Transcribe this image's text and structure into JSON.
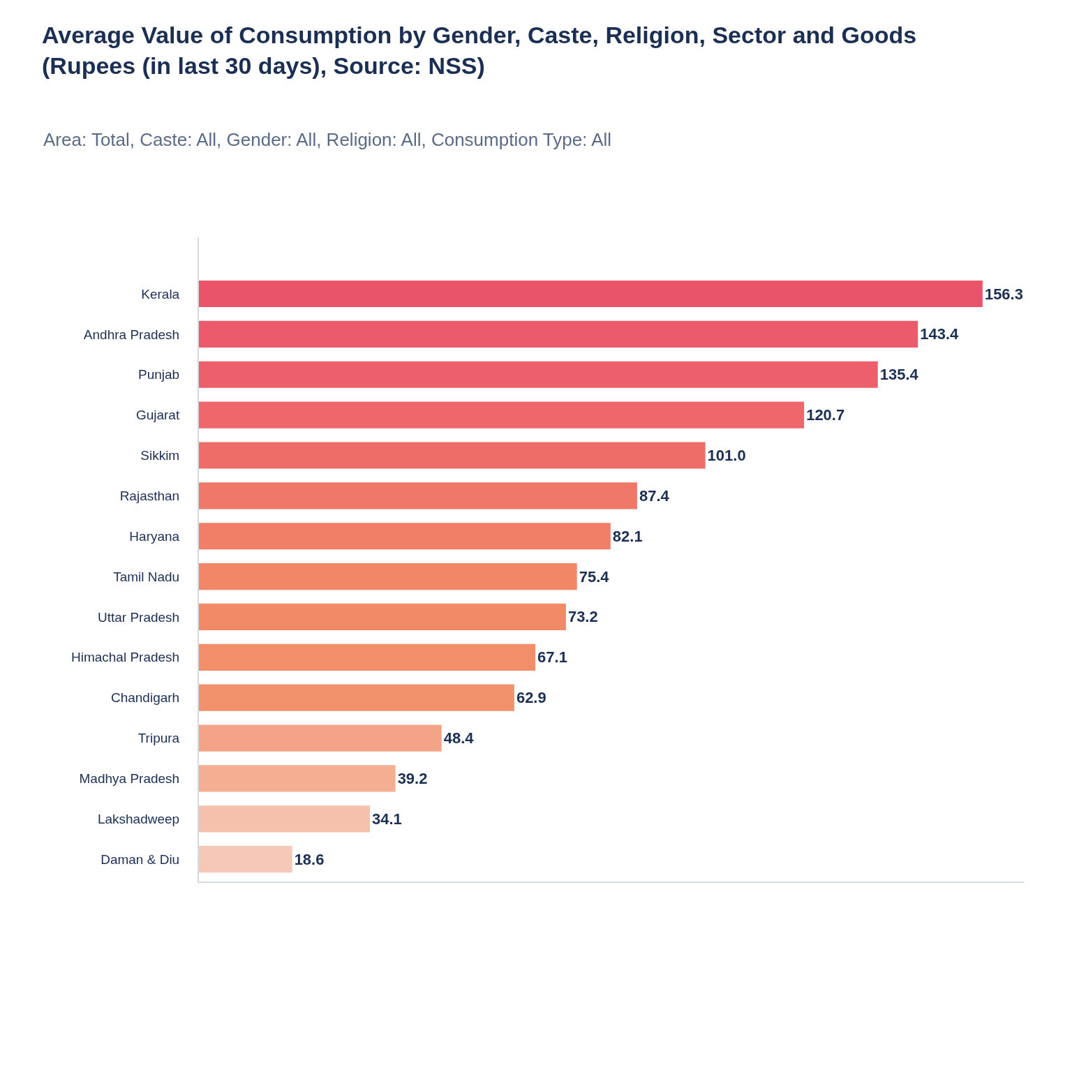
{
  "chart_data": {
    "type": "bar",
    "orientation": "horizontal",
    "title": "Average Value of Consumption by Gender, Caste, Religion, Sector and Goods (Rupees (in last 30 days), Source: NSS)",
    "subtitle": "Area: Total, Caste: All, Gender: All, Religion: All, Consumption Type: All",
    "categories": [
      "Kerala",
      "Andhra Pradesh",
      "Punjab",
      "Gujarat",
      "Sikkim",
      "Rajasthan",
      "Haryana",
      "Tamil Nadu",
      "Uttar Pradesh",
      "Himachal Pradesh",
      "Chandigarh",
      "Tripura",
      "Madhya Pradesh",
      "Lakshadweep",
      "Daman & Diu"
    ],
    "values": [
      156.3,
      143.4,
      135.4,
      120.7,
      101.0,
      87.4,
      82.1,
      75.4,
      73.2,
      67.1,
      62.9,
      48.4,
      39.2,
      34.1,
      18.6
    ],
    "value_labels": [
      "156.3",
      "143.4",
      "135.4",
      "120.7",
      "101.0",
      "87.4",
      "82.1",
      "75.4",
      "73.2",
      "67.1",
      "62.9",
      "48.4",
      "39.2",
      "34.1",
      "18.6"
    ],
    "colors": [
      "#e9546b",
      "#ec5b6b",
      "#ed606b",
      "#ee676a",
      "#ef6d69",
      "#f07868",
      "#f17f68",
      "#f28768",
      "#f28a68",
      "#f28e69",
      "#f2926c",
      "#f4a486",
      "#f4af92",
      "#f5c1ad",
      "#f5c8b8"
    ],
    "tick_labels": "y"
  }
}
